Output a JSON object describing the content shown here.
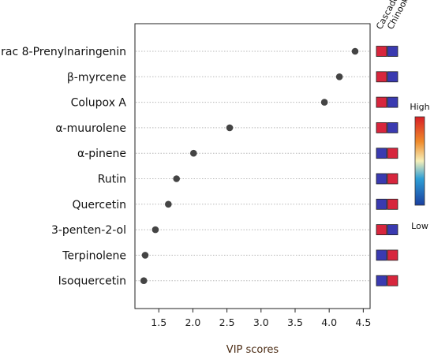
{
  "chart_data": {
    "type": "scatter",
    "xlabel": "VIP scores",
    "xlim": [
      1.15,
      4.6
    ],
    "xticks": [
      1.5,
      2.0,
      2.5,
      3.0,
      3.5,
      4.0,
      4.5
    ],
    "xtick_labels": [
      "1.5",
      "2.0",
      "2.5",
      "3.0",
      "3.5",
      "4.0",
      "4.5"
    ],
    "grid": "horizontal dotted",
    "features": [
      {
        "label": "rac 8-Prenylnaringenin",
        "vip": 4.38
      },
      {
        "label": "β-myrcene",
        "vip": 4.15
      },
      {
        "label": "Colupox A",
        "vip": 3.93
      },
      {
        "label": "α-muurolene",
        "vip": 2.54
      },
      {
        "label": "α-pinene",
        "vip": 2.01
      },
      {
        "label": "Rutin",
        "vip": 1.76
      },
      {
        "label": "Quercetin",
        "vip": 1.64
      },
      {
        "label": "3-penten-2-ol",
        "vip": 1.45
      },
      {
        "label": "Terpinolene",
        "vip": 1.3
      },
      {
        "label": "Isoquercetin",
        "vip": 1.28
      }
    ],
    "heatmap": {
      "groups": [
        "Cascade",
        "Chinook"
      ],
      "levels": [
        [
          "high",
          "low"
        ],
        [
          "high",
          "low"
        ],
        [
          "high",
          "low"
        ],
        [
          "high",
          "low"
        ],
        [
          "low",
          "high"
        ],
        [
          "low",
          "high"
        ],
        [
          "low",
          "high"
        ],
        [
          "high",
          "low"
        ],
        [
          "low",
          "high"
        ],
        [
          "low",
          "high"
        ]
      ]
    },
    "legend": {
      "title_high": "High",
      "title_low": "Low",
      "placement": "right",
      "colors": [
        "#1a3fa0",
        "#2e9fd6",
        "#f5efb8",
        "#ef8a2a",
        "#d81f26"
      ]
    },
    "colors": {
      "high_cell": "#d7263d",
      "low_cell": "#3a3ab0",
      "dot": "#444444",
      "grid": "#b8b8b8"
    }
  }
}
